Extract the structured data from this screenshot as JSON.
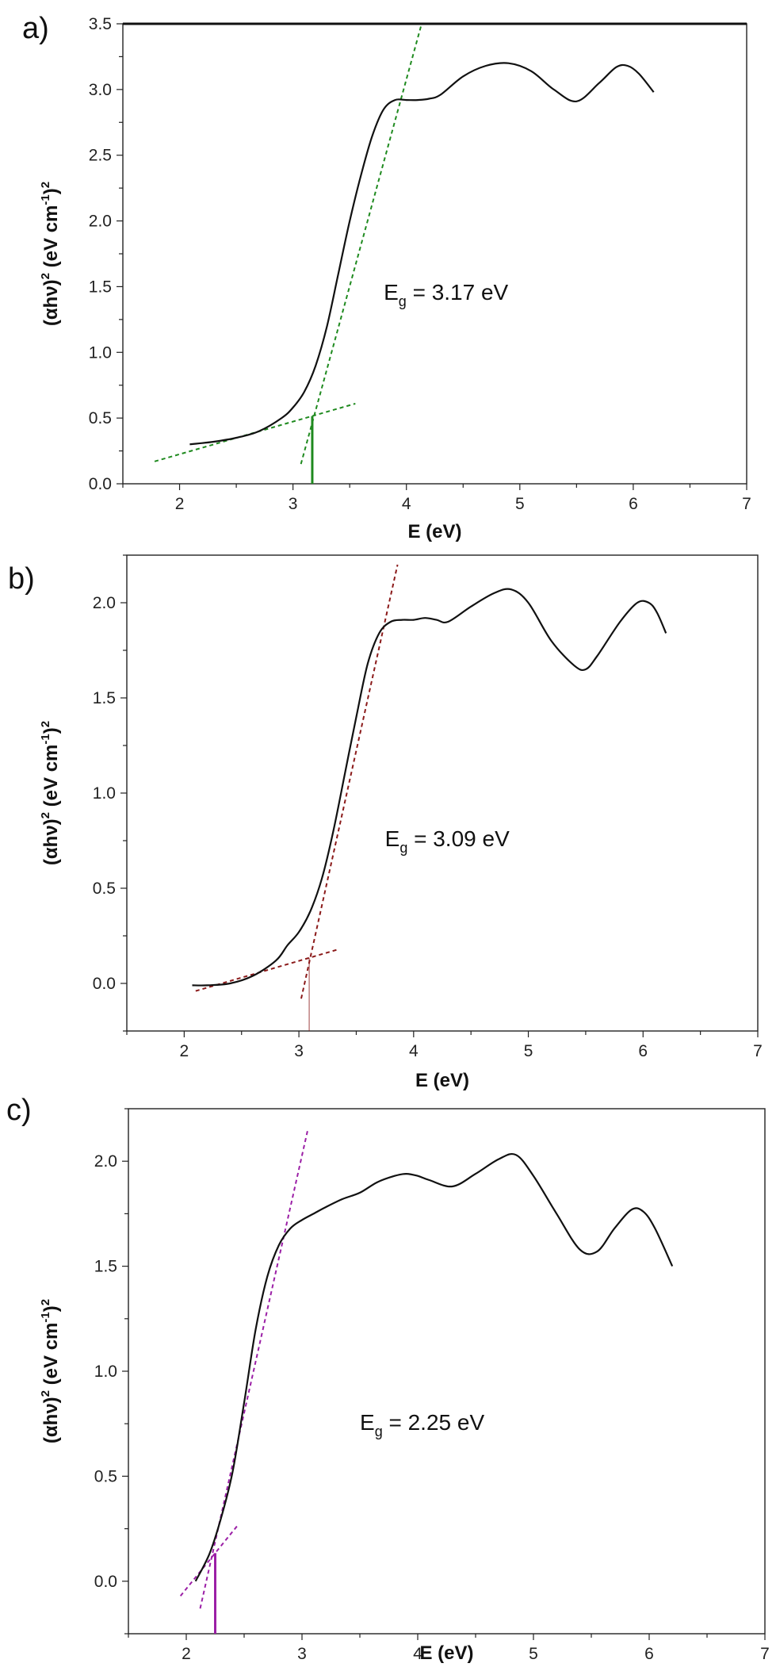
{
  "chart_data": [
    {
      "panel": "a)",
      "type": "line",
      "xlabel": "E (eV)",
      "ylabel_main": "(αhν)",
      "ylabel_sup1": "2",
      "ylabel_units": " (eV cm",
      "ylabel_sup2": "-1",
      "ylabel_close": ")",
      "ylabel_sup3": "2",
      "xlim": [
        1.5,
        7
      ],
      "ylim": [
        0,
        3.5
      ],
      "xticks": [
        "2",
        "3",
        "4",
        "5",
        "6",
        "7"
      ],
      "yticks": [
        "0.0",
        "0.5",
        "1.0",
        "1.5",
        "2.0",
        "2.5",
        "3.0",
        "3.5"
      ],
      "annotation": {
        "E": "E",
        "sub": "g",
        "rest": " = 3.17 eV"
      },
      "fit_color": "#1f8a1f",
      "band_gap": 3.17,
      "x": [
        2.09,
        2.3,
        2.5,
        2.7,
        2.9,
        3.0,
        3.1,
        3.2,
        3.3,
        3.4,
        3.5,
        3.6,
        3.7,
        3.8,
        3.9,
        4.0,
        4.1,
        4.2,
        4.3,
        4.5,
        4.7,
        4.9,
        5.1,
        5.3,
        5.5,
        5.7,
        5.85,
        5.95,
        6.05,
        6.18
      ],
      "y": [
        0.3,
        0.32,
        0.35,
        0.4,
        0.5,
        0.58,
        0.7,
        0.9,
        1.2,
        1.6,
        2.0,
        2.35,
        2.65,
        2.85,
        2.92,
        2.92,
        2.92,
        2.93,
        2.96,
        3.1,
        3.18,
        3.2,
        3.14,
        3.0,
        2.91,
        3.05,
        3.17,
        3.18,
        3.12,
        2.98
      ],
      "fit_lines": [
        {
          "x": [
            1.78,
            3.55
          ],
          "y": [
            0.17,
            0.61
          ]
        },
        {
          "x": [
            3.07,
            4.15
          ],
          "y": [
            0.15,
            3.55
          ]
        }
      ]
    },
    {
      "panel": "b)",
      "type": "line",
      "xlabel": "E (eV)",
      "ylabel_main": "(αhν)",
      "ylabel_sup1": "2",
      "ylabel_units": " (eV cm",
      "ylabel_sup2": "-1",
      "ylabel_close": ")",
      "ylabel_sup3": "2",
      "xlim": [
        1.5,
        7
      ],
      "ylim": [
        -0.25,
        2.25
      ],
      "xticks": [
        "2",
        "3",
        "4",
        "5",
        "6",
        "7"
      ],
      "yticks": [
        "0.0",
        "0.5",
        "1.0",
        "1.5",
        "2.0"
      ],
      "annotation": {
        "E": "E",
        "sub": "g",
        "rest": " = 3.09 eV"
      },
      "fit_color": "#8b1a1a",
      "band_gap": 3.09,
      "x": [
        2.07,
        2.2,
        2.4,
        2.6,
        2.8,
        2.9,
        3.0,
        3.1,
        3.2,
        3.3,
        3.4,
        3.5,
        3.6,
        3.7,
        3.8,
        3.9,
        4.0,
        4.1,
        4.2,
        4.3,
        4.5,
        4.7,
        4.85,
        5.0,
        5.2,
        5.4,
        5.5,
        5.6,
        5.8,
        5.95,
        6.05,
        6.12,
        6.2
      ],
      "y": [
        -0.01,
        -0.01,
        0.0,
        0.04,
        0.12,
        0.2,
        0.27,
        0.38,
        0.55,
        0.8,
        1.1,
        1.4,
        1.68,
        1.84,
        1.9,
        1.91,
        1.91,
        1.92,
        1.91,
        1.9,
        1.98,
        2.05,
        2.07,
        2.0,
        1.8,
        1.67,
        1.65,
        1.72,
        1.9,
        2.0,
        2.0,
        1.95,
        1.84
      ],
      "fit_lines": [
        {
          "x": [
            2.1,
            3.35
          ],
          "y": [
            -0.04,
            0.18
          ]
        },
        {
          "x": [
            3.02,
            3.86
          ],
          "y": [
            -0.08,
            2.2
          ]
        }
      ]
    },
    {
      "panel": "c)",
      "type": "line",
      "xlabel": "E (eV)",
      "ylabel_main": "(αhν)",
      "ylabel_sup1": "2",
      "ylabel_units": " (eV cm",
      "ylabel_sup2": "-1",
      "ylabel_close": ")",
      "ylabel_sup3": "2",
      "xlim": [
        1.5,
        7
      ],
      "ylim": [
        -0.25,
        2.25
      ],
      "xticks": [
        "2",
        "3",
        "4",
        "5",
        "6",
        "7"
      ],
      "yticks": [
        "0.0",
        "0.5",
        "1.0",
        "1.5",
        "2.0"
      ],
      "annotation": {
        "E": "E",
        "sub": "g",
        "rest": " = 2.25 eV"
      },
      "fit_color": "#9b1fa6",
      "band_gap": 2.25,
      "x": [
        2.08,
        2.2,
        2.3,
        2.4,
        2.5,
        2.6,
        2.7,
        2.8,
        2.9,
        3.0,
        3.1,
        3.2,
        3.35,
        3.5,
        3.65,
        3.8,
        3.9,
        4.0,
        4.1,
        4.3,
        4.5,
        4.7,
        4.85,
        5.0,
        5.2,
        5.4,
        5.55,
        5.7,
        5.85,
        5.95,
        6.05,
        6.2
      ],
      "y": [
        0.0,
        0.13,
        0.3,
        0.52,
        0.85,
        1.2,
        1.45,
        1.6,
        1.68,
        1.72,
        1.75,
        1.78,
        1.82,
        1.85,
        1.9,
        1.93,
        1.94,
        1.93,
        1.91,
        1.88,
        1.94,
        2.01,
        2.03,
        1.93,
        1.75,
        1.58,
        1.57,
        1.68,
        1.77,
        1.76,
        1.68,
        1.5
      ],
      "fit_lines": [
        {
          "x": [
            1.95,
            2.45
          ],
          "y": [
            -0.07,
            0.27
          ]
        },
        {
          "x": [
            2.12,
            3.05
          ],
          "y": [
            -0.13,
            2.15
          ]
        }
      ]
    }
  ]
}
